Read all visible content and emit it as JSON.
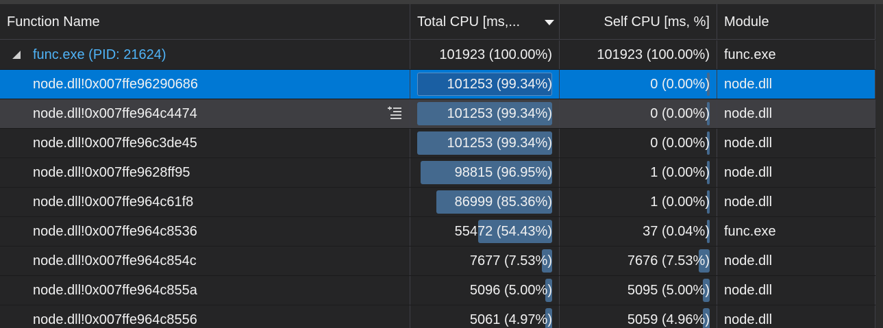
{
  "header": {
    "columns": [
      "Function Name",
      "Total CPU [ms,...",
      "Self CPU [ms, %]",
      "Module"
    ]
  },
  "rows": [
    {
      "name": "func.exe (PID: 21624)",
      "total": {
        "label": "101923 (100.00%)"
      },
      "self": {
        "label": "101923 (100.00%)"
      },
      "module": "func.exe"
    },
    {
      "name": "node.dll!0x007ffe96290686",
      "total": {
        "label": "101253 (99.34%)",
        "value": 99.34
      },
      "self": {
        "label": "0 (0.00%)",
        "value": 0
      },
      "module": "node.dll"
    },
    {
      "name": "node.dll!0x007ffe964c4474",
      "total": {
        "label": "101253 (99.34%)",
        "value": 99.34
      },
      "self": {
        "label": "0 (0.00%)",
        "value": 0
      },
      "module": "node.dll"
    },
    {
      "name": "node.dll!0x007ffe96c3de45",
      "total": {
        "label": "101253 (99.34%)",
        "value": 99.34
      },
      "self": {
        "label": "0 (0.00%)",
        "value": 0
      },
      "module": "node.dll"
    },
    {
      "name": "node.dll!0x007ffe9628ff95",
      "total": {
        "label": "98815 (96.95%)",
        "value": 96.95
      },
      "self": {
        "label": "1 (0.00%)",
        "value": 0
      },
      "module": "node.dll"
    },
    {
      "name": "node.dll!0x007ffe964c61f8",
      "total": {
        "label": "86999 (85.36%)",
        "value": 85.36
      },
      "self": {
        "label": "1 (0.00%)",
        "value": 0
      },
      "module": "node.dll"
    },
    {
      "name": "node.dll!0x007ffe964c8536",
      "total": {
        "label": "55472 (54.43%)",
        "value": 54.43
      },
      "self": {
        "label": "37 (0.04%)",
        "value": 0.04
      },
      "module": "func.exe"
    },
    {
      "name": "node.dll!0x007ffe964c854c",
      "total": {
        "label": "7677 (7.53%)",
        "value": 7.53
      },
      "self": {
        "label": "7676 (7.53%)",
        "value": 7.53
      },
      "module": "node.dll"
    },
    {
      "name": "node.dll!0x007ffe964c855a",
      "total": {
        "label": "5096 (5.00%)",
        "value": 5.0
      },
      "self": {
        "label": "5095 (5.00%)",
        "value": 5.0
      },
      "module": "node.dll"
    },
    {
      "name": "node.dll!0x007ffe964c8556",
      "total": {
        "label": "5061 (4.97%)",
        "value": 4.97
      },
      "self": {
        "label": "5059 (4.96%)",
        "value": 4.96
      },
      "module": "node.dll"
    }
  ]
}
